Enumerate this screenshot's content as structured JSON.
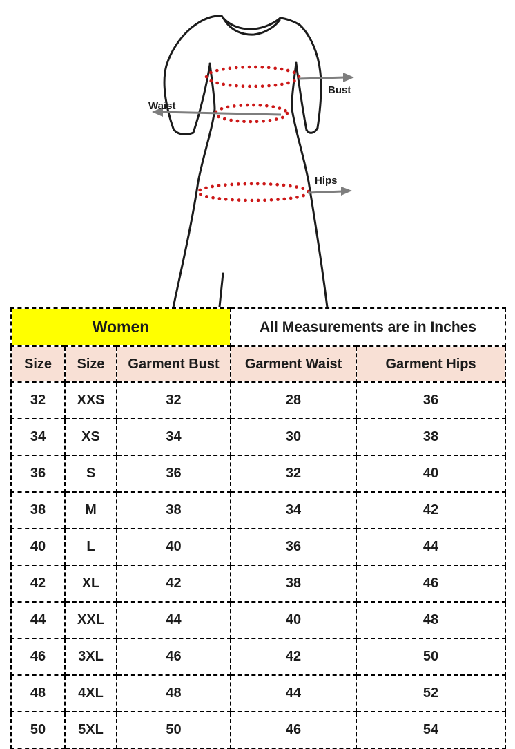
{
  "diagram": {
    "bust_label": "Bust",
    "waist_label": "Waist",
    "hips_label": "Hips"
  },
  "table": {
    "group_headers": [
      {
        "label": "Women",
        "colspan": 3
      },
      {
        "label": "All Measurements are in Inches",
        "colspan": 2
      }
    ],
    "columns": [
      "Size",
      "Size",
      "Garment Bust",
      "Garment Waist",
      "Garment Hips"
    ],
    "rows": [
      [
        "32",
        "XXS",
        "32",
        "28",
        "36"
      ],
      [
        "34",
        "XS",
        "34",
        "30",
        "38"
      ],
      [
        "36",
        "S",
        "36",
        "32",
        "40"
      ],
      [
        "38",
        "M",
        "38",
        "34",
        "42"
      ],
      [
        "40",
        "L",
        "40",
        "36",
        "44"
      ],
      [
        "42",
        "XL",
        "42",
        "38",
        "46"
      ],
      [
        "44",
        "XXL",
        "44",
        "40",
        "48"
      ],
      [
        "46",
        "3XL",
        "46",
        "42",
        "50"
      ],
      [
        "48",
        "4XL",
        "48",
        "44",
        "52"
      ],
      [
        "50",
        "5XL",
        "50",
        "46",
        "54"
      ]
    ]
  },
  "colors": {
    "yellow_header": "#FFFF00",
    "pink_header": "#F8E0D5",
    "red_dots": "#CC1818",
    "arrow_gray": "#7E7E7E"
  }
}
